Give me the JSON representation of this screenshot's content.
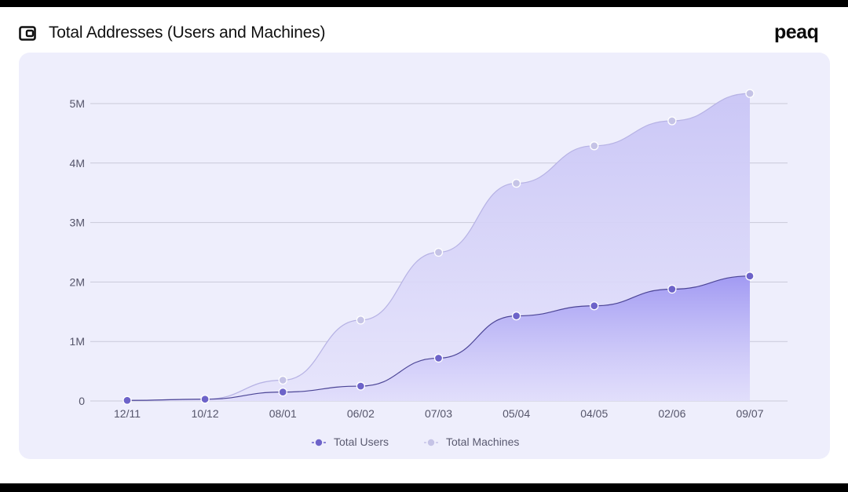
{
  "header": {
    "title": "Total Addresses (Users and Machines)",
    "icon": "wallet-icon",
    "logo_text": "peaq"
  },
  "colors": {
    "users": "#6d63c9",
    "machines": "#c5c3e6",
    "card_bg": "#eeeefc",
    "grid": "#c9c9d9"
  },
  "chart_data": {
    "type": "area",
    "title": "Total Addresses (Users and Machines)",
    "xlabel": "",
    "ylabel": "",
    "categories": [
      "12/11",
      "10/12",
      "08/01",
      "06/02",
      "07/03",
      "05/04",
      "04/05",
      "02/06",
      "09/07"
    ],
    "ylim": [
      0,
      5000000
    ],
    "yticks": [
      0,
      1000000,
      2000000,
      3000000,
      4000000,
      5000000
    ],
    "ytick_labels": [
      "0",
      "1M",
      "2M",
      "3M",
      "4M",
      "5M"
    ],
    "grid": true,
    "legend_position": "bottom",
    "series": [
      {
        "name": "Total Users",
        "values": [
          10000,
          30000,
          150000,
          250000,
          720000,
          1430000,
          1600000,
          1880000,
          2100000
        ]
      },
      {
        "name": "Total Machines",
        "values": [
          10000,
          30000,
          350000,
          1360000,
          2500000,
          3660000,
          4290000,
          4710000,
          5170000
        ]
      }
    ]
  }
}
